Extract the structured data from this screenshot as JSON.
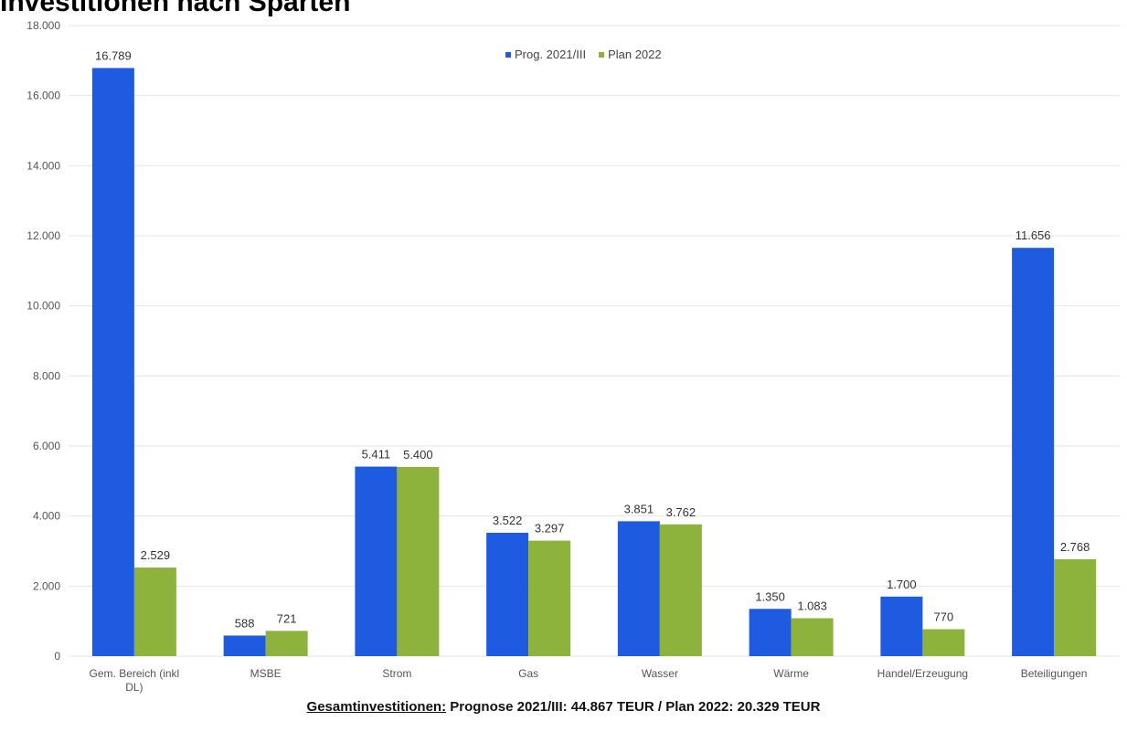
{
  "page_title": "Investitionen nach Sparten",
  "footer": {
    "label": "Gesamtinvestitionen:",
    "text": " Prognose 2021/III:  44.867 TEUR / Plan 2022: 20.329 TEUR"
  },
  "colors": {
    "series1": "#1f5be0",
    "series2": "#8db33c",
    "grid": "#e6e6e6",
    "axis_text": "#555555"
  },
  "chart_data": {
    "type": "bar",
    "title": "",
    "xlabel": "",
    "ylabel": "",
    "ylim": [
      0,
      18000
    ],
    "yticks": [
      "0",
      "2.000",
      "4.000",
      "6.000",
      "8.000",
      "10.000",
      "12.000",
      "14.000",
      "16.000",
      "18.000"
    ],
    "legend_position": "top-center",
    "grid": true,
    "categories": [
      [
        "Gem. Bereich (inkl",
        "DL)"
      ],
      [
        "MSBE"
      ],
      [
        "Strom"
      ],
      [
        "Gas"
      ],
      [
        "Wasser"
      ],
      [
        "Wärme"
      ],
      [
        "Handel/Erzeugung"
      ],
      [
        "Beteiligungen"
      ]
    ],
    "series": [
      {
        "name": "Prog. 2021/III",
        "values": [
          16789,
          588,
          5411,
          3522,
          3851,
          1350,
          1700,
          11656
        ],
        "labels": [
          "16.789",
          "588",
          "5.411",
          "3.522",
          "3.851",
          "1.350",
          "1.700",
          "11.656"
        ]
      },
      {
        "name": "Plan 2022",
        "values": [
          2529,
          721,
          5400,
          3297,
          3762,
          1083,
          770,
          2768
        ],
        "labels": [
          "2.529",
          "721",
          "5.400",
          "3.297",
          "3.762",
          "1.083",
          "770",
          "2.768"
        ]
      }
    ]
  }
}
